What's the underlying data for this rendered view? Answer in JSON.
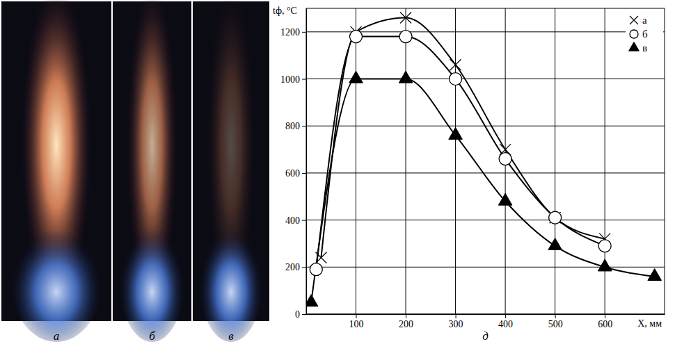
{
  "photos": [
    {
      "label": "а"
    },
    {
      "label": "б"
    },
    {
      "label": "в"
    }
  ],
  "chart_label": "д",
  "chart_data": {
    "type": "line",
    "x_label": "X, мм",
    "y_label": "tф, °C",
    "xlim": [
      0,
      720
    ],
    "xticks": [
      100,
      200,
      300,
      400,
      500,
      600
    ],
    "ylim": [
      0,
      1300
    ],
    "yticks": [
      0,
      200,
      400,
      600,
      800,
      1000,
      1200
    ],
    "grid": true,
    "legend": "top-right",
    "series": [
      {
        "name": "а",
        "color": "#000000",
        "marker": "x",
        "line_style": "solid",
        "x": [
          30,
          100,
          200,
          300,
          400,
          500,
          600
        ],
        "values": [
          240,
          1200,
          1260,
          1060,
          700,
          410,
          320
        ]
      },
      {
        "name": "б",
        "color": "#000000",
        "marker": "circle",
        "line_style": "solid",
        "x": [
          20,
          100,
          200,
          300,
          400,
          500,
          600
        ],
        "values": [
          190,
          1180,
          1180,
          1000,
          660,
          410,
          290
        ]
      },
      {
        "name": "в",
        "color": "#000000",
        "marker": "triangle",
        "line_style": "solid",
        "x": [
          10,
          100,
          200,
          300,
          400,
          500,
          600,
          700
        ],
        "values": [
          50,
          1000,
          1000,
          760,
          480,
          290,
          200,
          160
        ]
      }
    ]
  }
}
